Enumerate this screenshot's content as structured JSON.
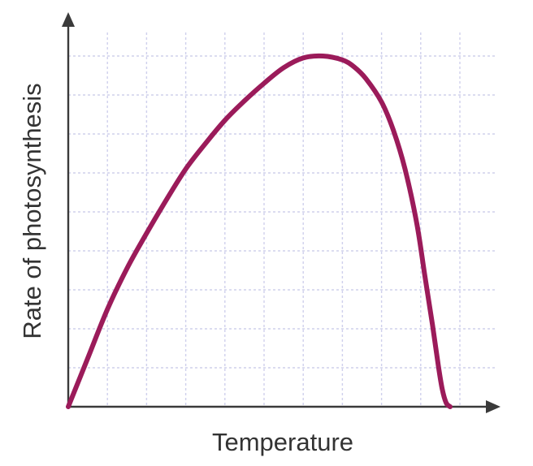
{
  "chart_data": {
    "type": "line",
    "title": "",
    "xlabel": "Temperature",
    "ylabel": "Rate of photosynthesis",
    "x_ticks_labeled": false,
    "y_ticks_labeled": false,
    "grid": true,
    "grid_style": "dashed",
    "xlim": [
      0,
      11
    ],
    "ylim": [
      0,
      9
    ],
    "series": [
      {
        "color": "#9b1b5a",
        "x": [
          0,
          0.5,
          1,
          1.5,
          2,
          2.5,
          3,
          3.5,
          4,
          4.5,
          5,
          5.5,
          6,
          6.5,
          7,
          7.3,
          7.6,
          8,
          8.3,
          8.6,
          8.9,
          9.1,
          9.3,
          9.45,
          9.55,
          9.65,
          9.75
        ],
        "y": [
          0,
          1.25,
          2.5,
          3.55,
          4.45,
          5.3,
          6.1,
          6.75,
          7.35,
          7.85,
          8.3,
          8.7,
          8.95,
          9.0,
          8.9,
          8.72,
          8.42,
          7.82,
          7.1,
          6.1,
          4.7,
          3.4,
          2.1,
          1.05,
          0.45,
          0.1,
          0
        ]
      }
    ],
    "colors": {
      "grid": "#cfd0ec",
      "axis": "#3a3a3a",
      "curve": "#9b1b5a",
      "text": "#333333"
    }
  }
}
